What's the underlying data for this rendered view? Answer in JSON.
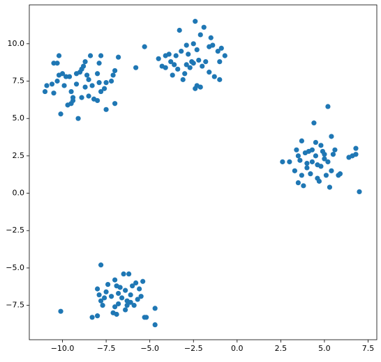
{
  "chart_data": {
    "type": "scatter",
    "color": "#1f77b4",
    "x": [
      -11,
      -10.9,
      -10.6,
      -10.5,
      -10.3,
      -10.2,
      -10.5,
      -10.3,
      -10.2,
      -10.0,
      -9.8,
      -9.9,
      -10.1,
      -9.7,
      -9.5,
      -9.5,
      -9.4,
      -9.4,
      -9.2,
      -9.0,
      -8.9,
      -8.8,
      -8.7,
      -9.1,
      -8.9,
      -8.7,
      -8.5,
      -8.4,
      -8.3,
      -8.2,
      -8.5,
      -8.0,
      -7.9,
      -7.8,
      -8.0,
      -7.8,
      -7.6,
      -7.5,
      -7.5,
      -7.2,
      -7.1,
      -7.0,
      -7.0,
      -6.8,
      -9.2,
      -9.6,
      -8.6,
      -7.9,
      -5.3,
      -5.8,
      -4.5,
      -4.3,
      -4.1,
      -4.1,
      -3.8,
      -3.6,
      -3.5,
      -3.3,
      -3.2,
      -3.0,
      -3.1,
      -2.9,
      -2.8,
      -2.6,
      -2.5,
      -2.4,
      -2.3,
      -2.2,
      -2.1,
      -2.0,
      -2.3,
      -2.4,
      -2.1,
      -1.9,
      -1.8,
      -1.6,
      -1.6,
      -1.5,
      -1.4,
      -1.3,
      -1.1,
      -1.0,
      -1.0,
      -0.9,
      -0.7,
      -3.7,
      -3.4,
      -2.7,
      -2.5,
      -2.9,
      -3.9,
      2.6,
      3.0,
      3.3,
      3.4,
      3.5,
      3.5,
      3.7,
      3.7,
      3.8,
      3.9,
      4.0,
      4.0,
      4.2,
      4.3,
      4.4,
      4.5,
      4.5,
      4.6,
      4.6,
      4.7,
      4.8,
      4.9,
      5.0,
      5.1,
      5.2,
      5.2,
      5.3,
      5.4,
      5.4,
      5.5,
      5.6,
      5.8,
      5.9,
      6.4,
      6.6,
      6.8,
      6.8,
      7.0,
      4.1,
      3.6,
      4.8,
      5.0,
      4.3,
      -10.1,
      -8.3,
      -8.0,
      -7.8,
      -7.9,
      -7.8,
      -7.7,
      -7.5,
      -7.4,
      -7.2,
      -7.0,
      -7.0,
      -6.9,
      -6.8,
      -6.7,
      -6.6,
      -6.5,
      -6.4,
      -6.4,
      -6.3,
      -6.2,
      -6.1,
      -6.0,
      -5.9,
      -5.8,
      -5.7,
      -5.6,
      -5.5,
      -5.4,
      -5.3,
      -5.2,
      -4.7,
      -4.7,
      -7.6,
      -6.8,
      -6.3,
      -7.1,
      -8.0,
      -6.9,
      -6.1
    ],
    "values": [
      6.8,
      7.2,
      7.3,
      8.7,
      8.7,
      9.2,
      6.7,
      7.5,
      7.9,
      8.0,
      7.8,
      7.2,
      5.3,
      5.9,
      6.0,
      6.8,
      6.4,
      6.2,
      8.0,
      8.1,
      8.3,
      8.5,
      8.8,
      5.0,
      6.4,
      7.1,
      7.6,
      9.2,
      7.2,
      6.3,
      6.5,
      8.0,
      8.7,
      9.2,
      6.2,
      6.8,
      7.0,
      7.4,
      5.6,
      7.5,
      7.9,
      8.2,
      6.0,
      9.1,
      7.3,
      7.8,
      7.9,
      7.4,
      9.8,
      8.4,
      9.0,
      8.5,
      8.4,
      9.2,
      8.8,
      8.6,
      9.2,
      10.9,
      9.5,
      8.0,
      7.6,
      8.6,
      9.3,
      8.8,
      10.0,
      11.5,
      9.6,
      8.9,
      10.6,
      8.5,
      7.2,
      7.0,
      7.1,
      11.1,
      8.8,
      9.8,
      8.1,
      10.4,
      9.9,
      7.8,
      9.5,
      8.8,
      7.6,
      9.7,
      9.2,
      7.9,
      8.3,
      8.4,
      8.7,
      9.9,
      9.3,
      2.1,
      2.1,
      1.5,
      2.9,
      2.5,
      0.7,
      3.5,
      1.2,
      0.5,
      2.7,
      2.0,
      1.7,
      1.3,
      2.9,
      4.7,
      3.4,
      2.5,
      1.9,
      1.0,
      0.8,
      3.2,
      2.8,
      2.3,
      1.2,
      5.8,
      2.1,
      0.4,
      3.8,
      1.5,
      2.6,
      2.9,
      1.2,
      1.3,
      2.4,
      2.5,
      3.0,
      2.6,
      0.1,
      2.8,
      2.2,
      1.8,
      2.6,
      2.1,
      -7.9,
      -8.3,
      -6.4,
      -4.8,
      -6.8,
      -7.2,
      -7.5,
      -6.6,
      -6.1,
      -6.9,
      -5.8,
      -7.6,
      -8.1,
      -7.4,
      -6.3,
      -7.0,
      -5.4,
      -7.8,
      -6.5,
      -7.2,
      -5.4,
      -6.8,
      -6.2,
      -7.5,
      -6.0,
      -7.1,
      -6.4,
      -6.9,
      -5.9,
      -8.3,
      -8.3,
      -7.7,
      -8.8,
      -7.0,
      -6.7,
      -7.5,
      -8.0,
      -8.2,
      -6.2,
      -7.3
    ],
    "xlim": [
      -11.9,
      8.0
    ],
    "xticks": [
      {
        "value": -10,
        "label": "−10.0"
      },
      {
        "value": -7.5,
        "label": "−7.5"
      },
      {
        "value": -5,
        "label": "−5.0"
      },
      {
        "value": -2.5,
        "label": "−2.5"
      },
      {
        "value": 0,
        "label": "0.0"
      },
      2.5,
      {
        "value": 5,
        "label": "5.0"
      },
      7.5
    ],
    "ylim": [
      -9.8,
      12.6
    ],
    "yticks": [
      {
        "value": -7.5,
        "label": "−7.5"
      },
      {
        "value": -5,
        "label": "−5.0"
      },
      {
        "value": -2.5,
        "label": "−2.5"
      },
      {
        "value": 0,
        "label": "0.0"
      },
      2.5,
      {
        "value": 5,
        "label": "5.0"
      },
      7.5,
      {
        "value": 10,
        "label": "10.0"
      }
    ]
  }
}
